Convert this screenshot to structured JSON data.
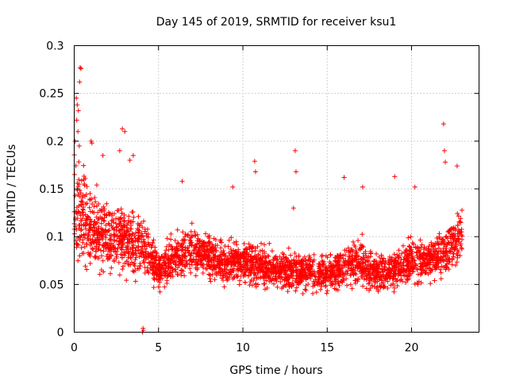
{
  "chart_data": {
    "type": "scatter",
    "title": "Day 145 of 2019, SRMTID for receiver ksu1",
    "xlabel": "GPS time / hours",
    "ylabel": "SRMTID / TECUs",
    "xlim": [
      0,
      24
    ],
    "ylim": [
      0,
      0.3
    ],
    "xticks": [
      0,
      5,
      10,
      15,
      20
    ],
    "xtick_labels": [
      "0",
      "5",
      "10",
      "15",
      "20"
    ],
    "yticks": [
      0,
      0.05,
      0.1,
      0.15,
      0.2,
      0.25,
      0.3
    ],
    "ytick_labels": [
      "0",
      "0.05",
      "0.1",
      "0.15",
      "0.2",
      "0.25",
      "0.3"
    ],
    "grid": true,
    "marker": "plus",
    "color": "#ff0000",
    "series": [
      {
        "name": "SRMTID",
        "envelope": {
          "x": [
            0,
            0.5,
            1,
            2,
            3,
            4,
            4.5,
            5,
            6,
            7,
            8,
            9,
            10,
            11,
            12,
            13,
            14,
            15,
            16,
            17,
            18,
            19,
            20,
            21,
            22,
            23
          ],
          "mean": [
            0.14,
            0.12,
            0.105,
            0.1,
            0.095,
            0.09,
            0.08,
            0.065,
            0.08,
            0.085,
            0.08,
            0.07,
            0.075,
            0.07,
            0.065,
            0.065,
            0.062,
            0.06,
            0.07,
            0.072,
            0.06,
            0.065,
            0.075,
            0.075,
            0.085,
            0.1
          ],
          "spread": [
            0.05,
            0.045,
            0.035,
            0.03,
            0.03,
            0.025,
            0.022,
            0.018,
            0.022,
            0.022,
            0.02,
            0.018,
            0.02,
            0.02,
            0.017,
            0.017,
            0.017,
            0.017,
            0.02,
            0.02,
            0.017,
            0.018,
            0.02,
            0.02,
            0.022,
            0.025
          ]
        },
        "highlights": [
          {
            "x": 0.12,
            "y": 0.245
          },
          {
            "x": 0.18,
            "y": 0.238
          },
          {
            "x": 0.25,
            "y": 0.232
          },
          {
            "x": 0.32,
            "y": 0.262
          },
          {
            "x": 0.35,
            "y": 0.277
          },
          {
            "x": 0.4,
            "y": 0.276
          },
          {
            "x": 0.15,
            "y": 0.222
          },
          {
            "x": 0.22,
            "y": 0.21
          },
          {
            "x": 0.05,
            "y": 0.2
          },
          {
            "x": 0.3,
            "y": 0.195
          },
          {
            "x": 1.0,
            "y": 0.2
          },
          {
            "x": 1.05,
            "y": 0.198
          },
          {
            "x": 2.85,
            "y": 0.213
          },
          {
            "x": 3.0,
            "y": 0.21
          },
          {
            "x": 2.7,
            "y": 0.19
          },
          {
            "x": 3.3,
            "y": 0.18
          },
          {
            "x": 3.5,
            "y": 0.185
          },
          {
            "x": 1.7,
            "y": 0.185
          },
          {
            "x": 10.7,
            "y": 0.179
          },
          {
            "x": 10.75,
            "y": 0.168
          },
          {
            "x": 13.1,
            "y": 0.19
          },
          {
            "x": 13.15,
            "y": 0.168
          },
          {
            "x": 13.0,
            "y": 0.13
          },
          {
            "x": 16.0,
            "y": 0.162
          },
          {
            "x": 21.9,
            "y": 0.218
          },
          {
            "x": 21.95,
            "y": 0.19
          },
          {
            "x": 22.0,
            "y": 0.178
          },
          {
            "x": 22.7,
            "y": 0.174
          },
          {
            "x": 19.0,
            "y": 0.163
          },
          {
            "x": 6.4,
            "y": 0.158
          },
          {
            "x": 9.4,
            "y": 0.152
          },
          {
            "x": 17.1,
            "y": 0.152
          },
          {
            "x": 20.2,
            "y": 0.152
          },
          {
            "x": 4.05,
            "y": 0.0
          },
          {
            "x": 4.1,
            "y": 0.002
          },
          {
            "x": 4.08,
            "y": 0.004
          }
        ],
        "n_points": 3000
      }
    ]
  }
}
